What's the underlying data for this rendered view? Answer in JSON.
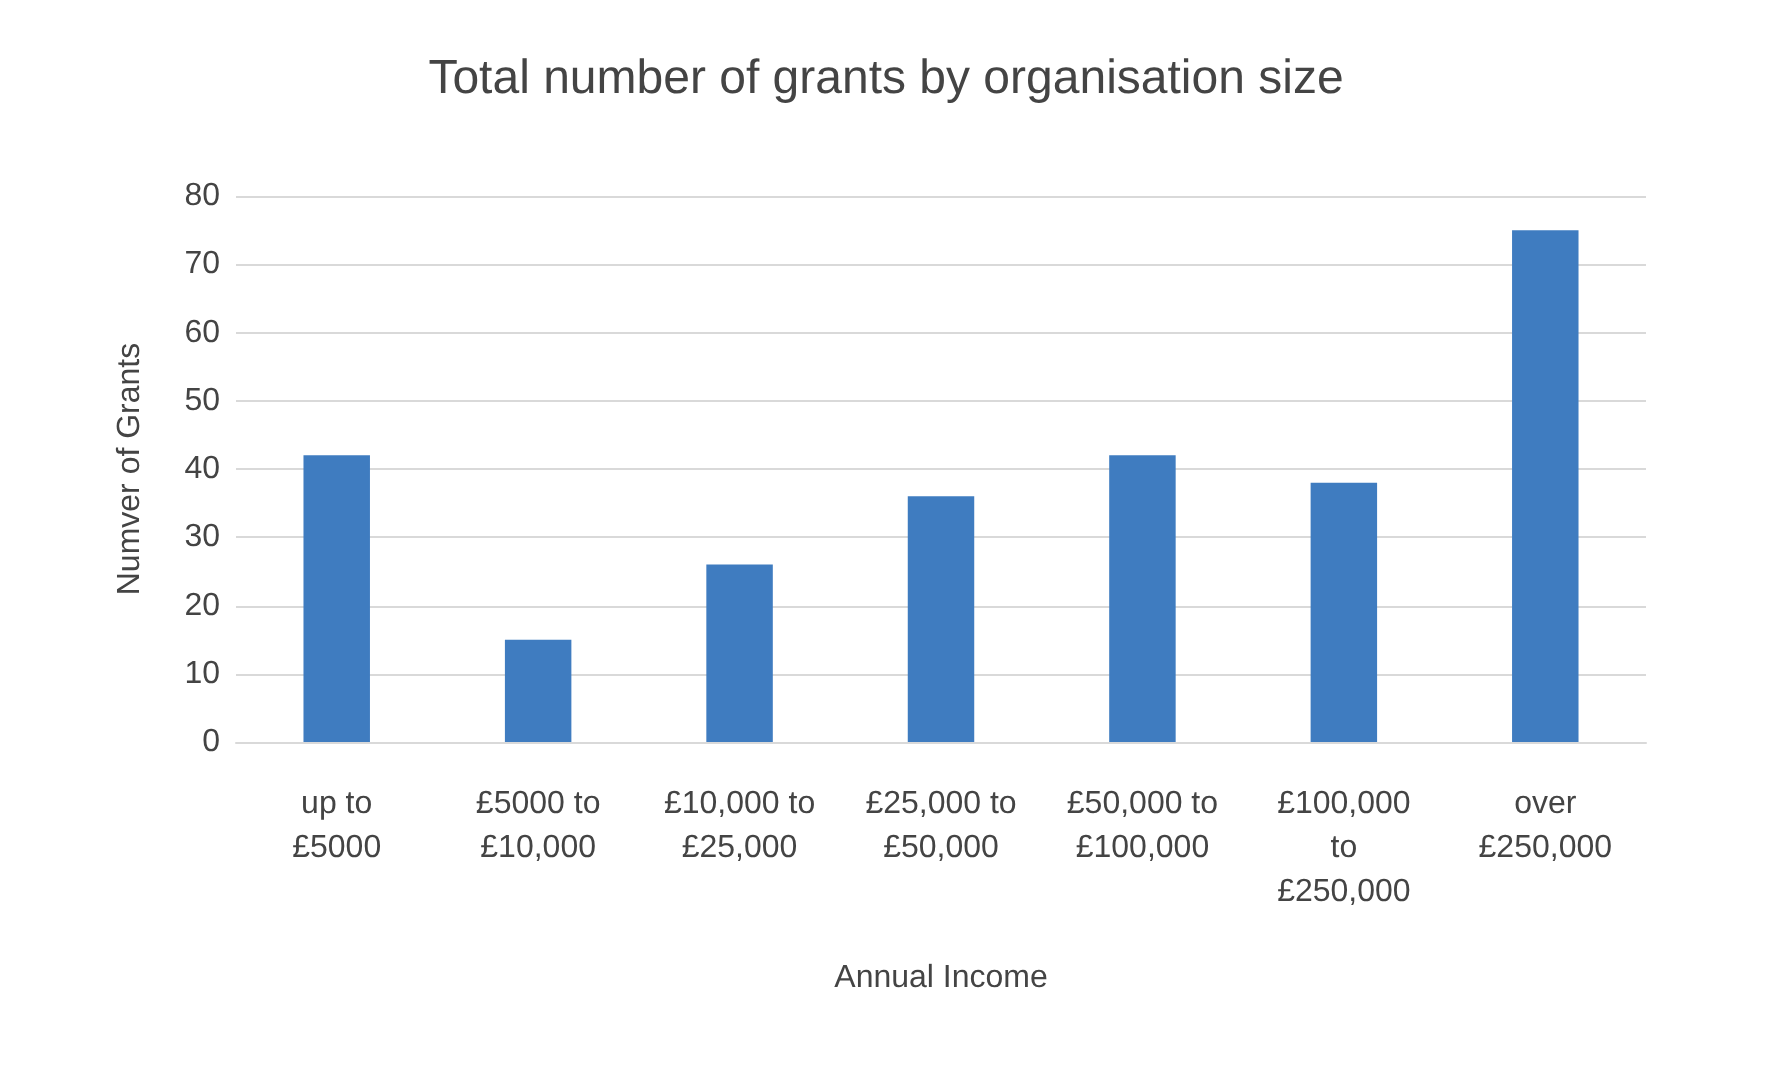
{
  "chart_data": {
    "type": "bar",
    "title": "Total number of grants by organisation size",
    "xlabel": "Annual Income",
    "ylabel": "Numver of Grants",
    "categories": [
      "up to £5000",
      "£5000 to £10,000",
      "£10,000 to £25,000",
      "£25,000 to £50,000",
      "£50,000 to £100,000",
      "£100,000 to £250,000",
      "over £250,000"
    ],
    "values": [
      42,
      15,
      26,
      36,
      42,
      38,
      75
    ],
    "color": "#3f7cc0",
    "ylim": [
      0,
      80
    ],
    "yticks": [
      0,
      10,
      20,
      30,
      40,
      50,
      60,
      70,
      80
    ],
    "grid": "y"
  }
}
